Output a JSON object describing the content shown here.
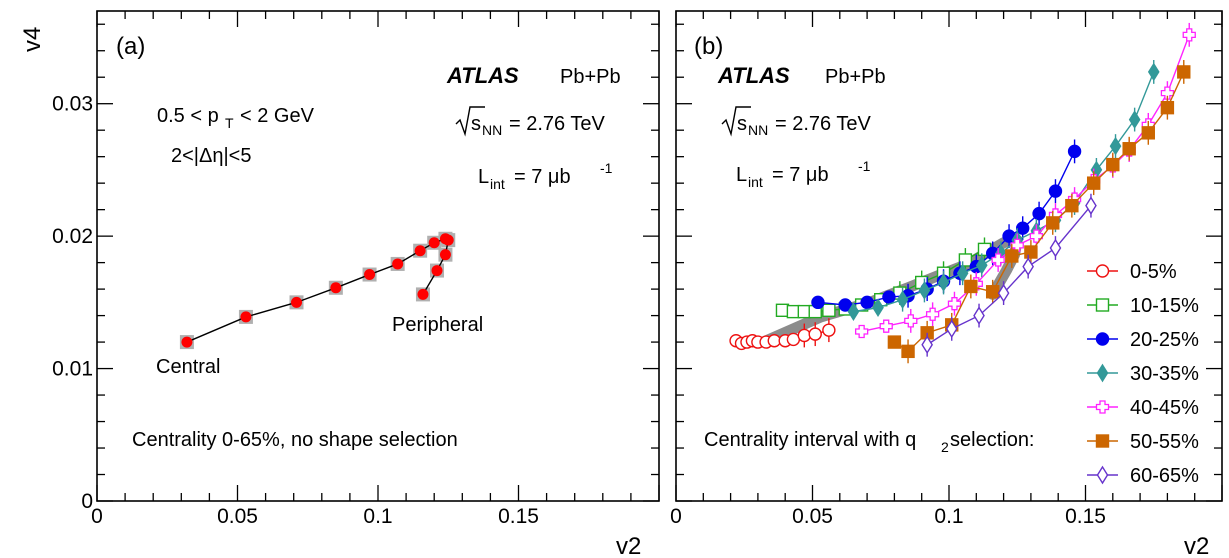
{
  "chart_data": [
    {
      "type": "line",
      "panel_label": "(a)",
      "xlabel": "v2",
      "ylabel": "v4",
      "xlim": [
        0,
        0.2
      ],
      "ylim": [
        0,
        0.037
      ],
      "x_ticks": [
        "0",
        "0.05",
        "0.1",
        "0.15"
      ],
      "y_ticks": [
        "0",
        "0.01",
        "0.02",
        "0.03"
      ],
      "annotations": {
        "experiment": "ATLAS",
        "system": "Pb+Pb",
        "energy_symbol": "s",
        "energy_sub": "NN",
        "energy_value": "= 2.76 TeV",
        "lumi_base": "L",
        "lumi_sub": "int",
        "lumi_value": "= 7 μb",
        "lumi_sup": "-1",
        "pt_range_left": "0.5 < p",
        "pt_range_sub": "T",
        "pt_range_right": "< 2 GeV",
        "eta_range": "2<|Δη|<5",
        "selection": "Centrality 0-65%, no shape selection",
        "label_central": "Central",
        "label_peripheral": "Peripheral"
      },
      "series": [
        {
          "color": "#ff0000",
          "x": [
            0.032,
            0.053,
            0.071,
            0.085,
            0.097,
            0.107,
            0.115,
            0.12,
            0.124,
            0.125,
            0.124,
            0.121,
            0.116
          ],
          "y": [
            0.012,
            0.0139,
            0.015,
            0.0161,
            0.0171,
            0.0179,
            0.0189,
            0.0195,
            0.0198,
            0.0197,
            0.0186,
            0.0174,
            0.0156
          ]
        }
      ]
    },
    {
      "type": "line",
      "panel_label": "(b)",
      "xlabel": "v2",
      "ylabel": "v4",
      "xlim": [
        0,
        0.2
      ],
      "ylim": [
        0,
        0.037
      ],
      "x_ticks": [
        "0",
        "0.05",
        "0.1",
        "0.15"
      ],
      "y_ticks": [
        "0",
        "0.01",
        "0.02",
        "0.03"
      ],
      "annotations": {
        "experiment": "ATLAS",
        "system": "Pb+Pb",
        "energy_symbol": "s",
        "energy_sub": "NN",
        "energy_value": "= 2.76 TeV",
        "lumi_base": "L",
        "lumi_sub": "int",
        "lumi_value": "= 7 μb",
        "lumi_sup": "-1",
        "selection_left": "Centrality interval with q",
        "selection_sub": "2",
        "selection_right": " selection:"
      },
      "reference_band_x": [
        0.032,
        0.053,
        0.071,
        0.085,
        0.097,
        0.107,
        0.115,
        0.12,
        0.124,
        0.125,
        0.124,
        0.121,
        0.116
      ],
      "reference_band_y": [
        0.012,
        0.0139,
        0.015,
        0.0161,
        0.0171,
        0.0179,
        0.0189,
        0.0195,
        0.0198,
        0.0197,
        0.0186,
        0.0174,
        0.0156
      ],
      "series": [
        {
          "name": "0-5%",
          "color": "#ee1111",
          "marker": "open-circle",
          "x": [
            0.022,
            0.024,
            0.026,
            0.028,
            0.03,
            0.033,
            0.036,
            0.04,
            0.043,
            0.047,
            0.051,
            0.056
          ],
          "y": [
            0.0121,
            0.0119,
            0.012,
            0.0121,
            0.012,
            0.012,
            0.0121,
            0.0121,
            0.0122,
            0.0125,
            0.0126,
            0.0129
          ]
        },
        {
          "name": "10-15%",
          "color": "#22aa22",
          "marker": "open-square",
          "x": [
            0.039,
            0.043,
            0.047,
            0.051,
            0.056,
            0.062,
            0.068,
            0.075,
            0.082,
            0.09,
            0.098,
            0.106,
            0.113
          ],
          "y": [
            0.0144,
            0.0143,
            0.0143,
            0.0143,
            0.0144,
            0.0145,
            0.0148,
            0.0152,
            0.0157,
            0.0165,
            0.0172,
            0.0182,
            0.019
          ]
        },
        {
          "name": "20-25%",
          "color": "#0000ee",
          "marker": "filled-circle",
          "x": [
            0.052,
            0.062,
            0.07,
            0.078,
            0.085,
            0.092,
            0.098,
            0.104,
            0.11,
            0.116,
            0.122,
            0.127,
            0.133,
            0.139,
            0.146
          ],
          "y": [
            0.015,
            0.0148,
            0.015,
            0.0154,
            0.0155,
            0.016,
            0.0166,
            0.0172,
            0.0177,
            0.0187,
            0.02,
            0.0206,
            0.0217,
            0.0234,
            0.0264
          ]
        },
        {
          "name": "30-35%",
          "color": "#339999",
          "marker": "filled-diamond",
          "x": [
            0.065,
            0.074,
            0.083,
            0.091,
            0.098,
            0.105,
            0.112,
            0.119,
            0.125,
            0.132,
            0.139,
            0.146,
            0.154,
            0.161,
            0.168,
            0.175
          ],
          "y": [
            0.0143,
            0.0146,
            0.0152,
            0.0159,
            0.0165,
            0.0172,
            0.0178,
            0.0187,
            0.0197,
            0.0204,
            0.0212,
            0.0225,
            0.025,
            0.0268,
            0.0288,
            0.0324
          ]
        },
        {
          "name": "40-45%",
          "color": "#ff22ff",
          "marker": "open-cross",
          "x": [
            0.068,
            0.077,
            0.086,
            0.094,
            0.102,
            0.11,
            0.118,
            0.125,
            0.132,
            0.139,
            0.146,
            0.153,
            0.16,
            0.166,
            0.173,
            0.18,
            0.188
          ],
          "y": [
            0.0128,
            0.0132,
            0.0136,
            0.0141,
            0.0149,
            0.0164,
            0.0182,
            0.0193,
            0.02,
            0.0216,
            0.0228,
            0.0242,
            0.0253,
            0.0265,
            0.0284,
            0.0308,
            0.0352
          ]
        },
        {
          "name": "50-55%",
          "color": "#cc6600",
          "marker": "filled-square",
          "x": [
            0.08,
            0.085,
            0.092,
            0.101,
            0.108,
            0.116,
            0.123,
            0.13,
            0.138,
            0.145,
            0.153,
            0.16,
            0.166,
            0.173,
            0.18,
            0.186
          ],
          "y": [
            0.012,
            0.0113,
            0.0127,
            0.0133,
            0.0162,
            0.0158,
            0.0185,
            0.0188,
            0.021,
            0.0223,
            0.024,
            0.0254,
            0.0266,
            0.0278,
            0.0297,
            0.0324
          ]
        },
        {
          "name": "60-65%",
          "color": "#6633cc",
          "marker": "open-diamond",
          "x": [
            0.092,
            0.101,
            0.111,
            0.12,
            0.129,
            0.139,
            0.152
          ],
          "y": [
            0.0118,
            0.013,
            0.014,
            0.0157,
            0.0177,
            0.0191,
            0.0223
          ]
        }
      ]
    }
  ]
}
